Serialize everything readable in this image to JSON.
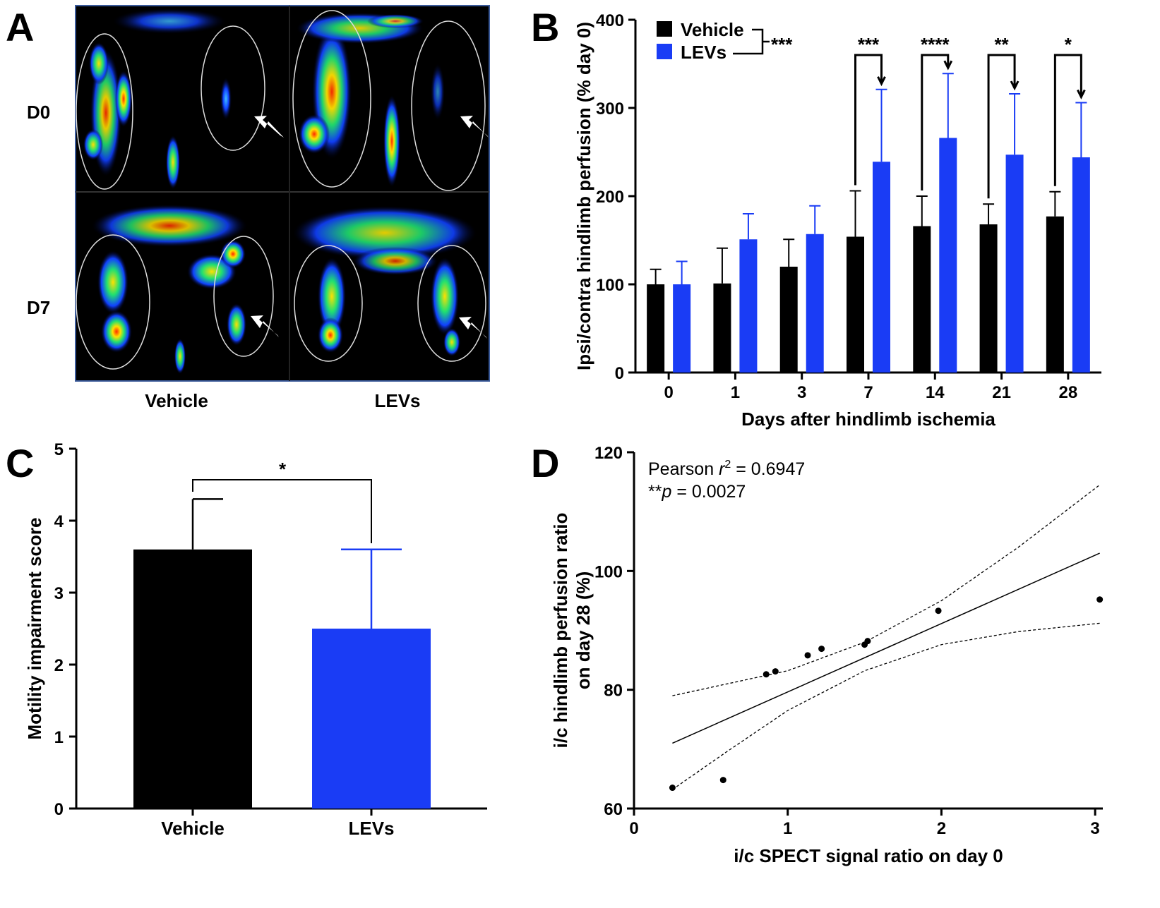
{
  "colors": {
    "vehicle": "#000000",
    "levs": "#1a3cf5",
    "image_bg": "#000000",
    "image_border": "#3a5a9a"
  },
  "panel_a": {
    "label": "A",
    "rows": [
      "D0",
      "D7"
    ],
    "columns": [
      "Vehicle",
      "LEVs"
    ]
  },
  "chart_data": [
    {
      "panel": "B",
      "type": "bar",
      "title": "",
      "xlabel": "Days after hindlimb ischemia",
      "ylabel": "Ipsi/contra hindlimb perfusion (% day 0)",
      "categories": [
        "0",
        "1",
        "3",
        "7",
        "14",
        "21",
        "28"
      ],
      "ylim": [
        0,
        400
      ],
      "yticks": [
        0,
        100,
        200,
        300,
        400
      ],
      "series": [
        {
          "name": "Vehicle",
          "color": "#000000",
          "values": [
            100,
            101,
            120,
            154,
            166,
            168,
            177
          ],
          "errors": [
            17,
            40,
            31,
            52,
            34,
            23,
            28
          ]
        },
        {
          "name": "LEVs",
          "color": "#1a3cf5",
          "values": [
            100,
            151,
            157,
            239,
            266,
            247,
            244
          ],
          "errors": [
            26,
            29,
            32,
            82,
            73,
            69,
            62
          ]
        }
      ],
      "legend": {
        "placement": "top-left",
        "overall_significance": "***"
      },
      "comparisons": [
        {
          "category": "7",
          "label": "***"
        },
        {
          "category": "14",
          "label": "****"
        },
        {
          "category": "21",
          "label": "**"
        },
        {
          "category": "28",
          "label": "*"
        }
      ]
    },
    {
      "panel": "C",
      "type": "bar",
      "title": "",
      "xlabel": "",
      "ylabel": "Motility impairment score",
      "categories": [
        "Vehicle",
        "LEVs"
      ],
      "values": [
        3.6,
        2.5
      ],
      "errors": [
        0.7,
        1.1
      ],
      "colors": [
        "#000000",
        "#1a3cf5"
      ],
      "ylim": [
        0,
        5
      ],
      "yticks": [
        0,
        1,
        2,
        3,
        4,
        5
      ],
      "comparison": {
        "label": "*"
      }
    },
    {
      "panel": "D",
      "type": "scatter",
      "title": "",
      "xlabel": "i/c SPECT signal ratio on day 0",
      "ylabel_lines": [
        "i/c hindlimb perfusion ratio",
        "on day 28 (%)"
      ],
      "xlim": [
        0,
        3.05
      ],
      "ylim": [
        60,
        120
      ],
      "xticks": [
        0,
        1,
        2,
        3
      ],
      "yticks": [
        60,
        80,
        100,
        120
      ],
      "points": [
        {
          "x": 0.25,
          "y": 63.5
        },
        {
          "x": 0.58,
          "y": 64.8
        },
        {
          "x": 0.86,
          "y": 82.6
        },
        {
          "x": 0.92,
          "y": 83.1
        },
        {
          "x": 1.13,
          "y": 85.8
        },
        {
          "x": 1.22,
          "y": 86.9
        },
        {
          "x": 1.5,
          "y": 87.6
        },
        {
          "x": 1.52,
          "y": 88.2
        },
        {
          "x": 1.98,
          "y": 93.3
        },
        {
          "x": 3.03,
          "y": 95.2
        }
      ],
      "fit_line": [
        {
          "x": 0.25,
          "y": 71.0
        },
        {
          "x": 3.03,
          "y": 103.0
        }
      ],
      "ci_upper": [
        {
          "x": 0.25,
          "y": 79.0
        },
        {
          "x": 1.0,
          "y": 83.2
        },
        {
          "x": 1.5,
          "y": 88.0
        },
        {
          "x": 2.0,
          "y": 95.0
        },
        {
          "x": 2.5,
          "y": 104.0
        },
        {
          "x": 3.03,
          "y": 114.5
        }
      ],
      "ci_lower": [
        {
          "x": 0.25,
          "y": 63.2
        },
        {
          "x": 0.6,
          "y": 69.5
        },
        {
          "x": 1.0,
          "y": 76.5
        },
        {
          "x": 1.5,
          "y": 83.2
        },
        {
          "x": 2.0,
          "y": 87.6
        },
        {
          "x": 2.5,
          "y": 89.8
        },
        {
          "x": 3.03,
          "y": 91.2
        }
      ],
      "annotations": {
        "pearson_prefix": "Pearson ",
        "r_symbol": "r",
        "r_sup": "2",
        "r_value": " = 0.6947",
        "p_stars": "**",
        "p_symbol": "p",
        "p_value": " = 0.0027"
      }
    }
  ],
  "panel_labels": {
    "b": "B",
    "c": "C",
    "d": "D"
  }
}
